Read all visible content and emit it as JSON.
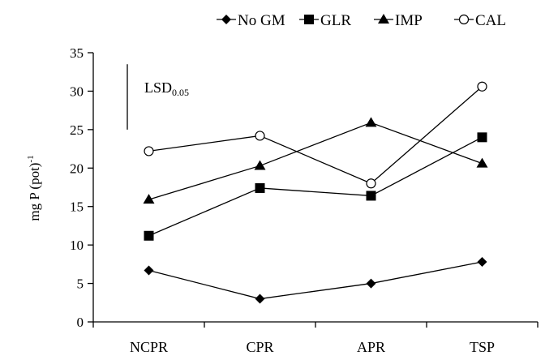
{
  "chart_data": {
    "type": "line",
    "title": "",
    "xlabel": "",
    "ylabel": "mg P (pot)",
    "ylabel_superscript": "-1",
    "ylim": [
      0,
      35
    ],
    "yticks": [
      "0",
      "5",
      "10",
      "15",
      "20",
      "25",
      "30",
      "35"
    ],
    "categories": [
      "NCPR",
      "CPR",
      "APR",
      "TSP"
    ],
    "grid": false,
    "legend_position": "top",
    "series": [
      {
        "name": "No GM",
        "marker": "diamond",
        "values": [
          6.7,
          3.0,
          5.0,
          7.8
        ]
      },
      {
        "name": "GLR",
        "marker": "square",
        "values": [
          11.2,
          17.4,
          16.4,
          24.0
        ]
      },
      {
        "name": "IMP",
        "marker": "triangle",
        "values": [
          15.9,
          20.3,
          25.9,
          20.6
        ]
      },
      {
        "name": "CAL",
        "marker": "open-circle",
        "values": [
          22.2,
          24.2,
          18.0,
          30.6
        ]
      }
    ],
    "annotation": {
      "text": "LSD",
      "subscript": "0.05",
      "bar_from": 25,
      "bar_to": 33.5
    }
  }
}
